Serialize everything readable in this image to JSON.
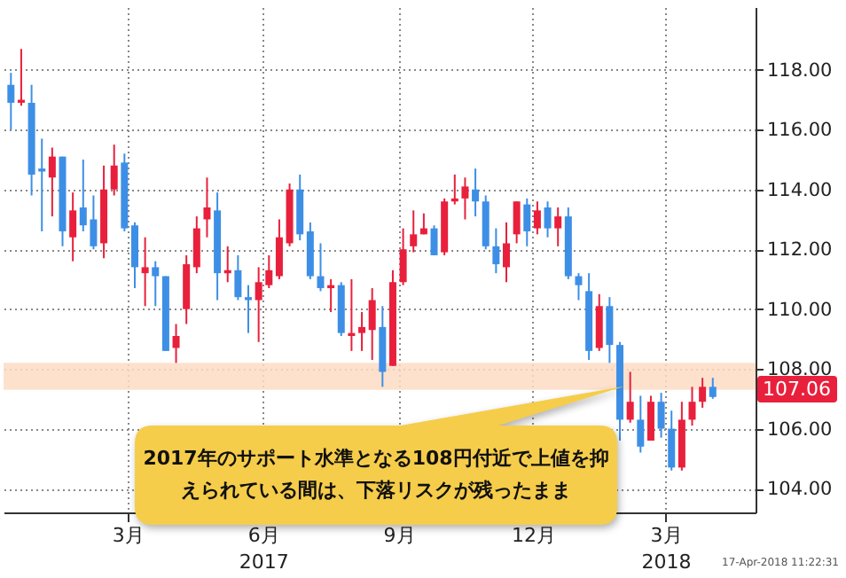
{
  "chart_data": {
    "type": "candlestick",
    "x": [
      "2016-12-26",
      "2017-01-02",
      "2017-01-09",
      "2017-01-16",
      "2017-01-23",
      "2017-01-30",
      "2017-02-06",
      "2017-02-13",
      "2017-02-20",
      "2017-02-27",
      "2017-03-06",
      "2017-03-13",
      "2017-03-20",
      "2017-03-27",
      "2017-04-03",
      "2017-04-10",
      "2017-04-17",
      "2017-04-24",
      "2017-05-01",
      "2017-05-08",
      "2017-05-15",
      "2017-05-22",
      "2017-05-29",
      "2017-06-05",
      "2017-06-12",
      "2017-06-19",
      "2017-06-26",
      "2017-07-03",
      "2017-07-10",
      "2017-07-17",
      "2017-07-24",
      "2017-07-31",
      "2017-08-07",
      "2017-08-14",
      "2017-08-21",
      "2017-08-28",
      "2017-09-04",
      "2017-09-11",
      "2017-09-18",
      "2017-09-25",
      "2017-10-02",
      "2017-10-09",
      "2017-10-16",
      "2017-10-23",
      "2017-10-30",
      "2017-11-06",
      "2017-11-13",
      "2017-11-20",
      "2017-11-27",
      "2017-12-04",
      "2017-12-11",
      "2017-12-18",
      "2017-12-25",
      "2018-01-01",
      "2018-01-08",
      "2018-01-15",
      "2018-01-22",
      "2018-01-29",
      "2018-02-05",
      "2018-02-12",
      "2018-02-19",
      "2018-02-26",
      "2018-03-05",
      "2018-03-12",
      "2018-03-19",
      "2018-03-26",
      "2018-04-02",
      "2018-04-09",
      "2018-04-16"
    ],
    "ohlc": [
      [
        117.5,
        117.9,
        116.0,
        116.9
      ],
      [
        116.9,
        118.7,
        116.8,
        117.0
      ],
      [
        116.9,
        117.5,
        113.8,
        114.5
      ],
      [
        114.7,
        115.7,
        112.6,
        114.6
      ],
      [
        114.4,
        115.4,
        113.1,
        115.1
      ],
      [
        115.1,
        115.1,
        112.1,
        112.6
      ],
      [
        112.4,
        113.9,
        111.6,
        113.3
      ],
      [
        113.4,
        115.0,
        112.6,
        112.8
      ],
      [
        113.0,
        113.8,
        112.0,
        112.1
      ],
      [
        112.2,
        114.8,
        111.7,
        114.0
      ],
      [
        114.0,
        115.5,
        113.8,
        114.8
      ],
      [
        114.9,
        115.2,
        112.6,
        112.7
      ],
      [
        112.8,
        112.9,
        110.7,
        111.4
      ],
      [
        111.2,
        112.4,
        110.1,
        111.4
      ],
      [
        111.4,
        111.6,
        110.1,
        111.1
      ],
      [
        111.1,
        111.1,
        108.6,
        108.6
      ],
      [
        108.7,
        109.5,
        108.2,
        109.1
      ],
      [
        110.0,
        111.8,
        109.5,
        111.5
      ],
      [
        111.4,
        113.1,
        111.2,
        112.7
      ],
      [
        113.0,
        114.4,
        112.4,
        113.4
      ],
      [
        113.3,
        113.9,
        110.3,
        111.2
      ],
      [
        111.2,
        112.1,
        110.9,
        111.3
      ],
      [
        111.3,
        111.8,
        110.3,
        110.4
      ],
      [
        110.4,
        110.8,
        109.2,
        110.3
      ],
      [
        110.3,
        111.4,
        108.9,
        110.9
      ],
      [
        110.8,
        111.8,
        110.7,
        111.3
      ],
      [
        111.1,
        113.0,
        111.0,
        112.4
      ],
      [
        112.2,
        114.2,
        112.1,
        114.0
      ],
      [
        114.0,
        114.5,
        112.3,
        112.5
      ],
      [
        112.6,
        112.9,
        111.0,
        111.1
      ],
      [
        111.1,
        112.2,
        110.6,
        110.7
      ],
      [
        110.7,
        111.0,
        109.9,
        110.8
      ],
      [
        110.8,
        110.9,
        109.1,
        109.2
      ],
      [
        109.1,
        111.0,
        108.6,
        109.2
      ],
      [
        109.2,
        109.9,
        108.6,
        109.4
      ],
      [
        109.3,
        110.7,
        108.3,
        110.3
      ],
      [
        109.4,
        110.1,
        107.4,
        107.9
      ],
      [
        108.1,
        111.3,
        108.1,
        110.9
      ],
      [
        110.9,
        112.7,
        110.8,
        112.0
      ],
      [
        112.1,
        113.3,
        111.9,
        112.5
      ],
      [
        112.5,
        113.2,
        112.5,
        112.7
      ],
      [
        112.7,
        112.8,
        111.8,
        111.8
      ],
      [
        111.9,
        113.7,
        111.8,
        113.6
      ],
      [
        113.6,
        114.5,
        113.5,
        113.7
      ],
      [
        113.7,
        114.4,
        113.0,
        114.1
      ],
      [
        114.0,
        114.7,
        113.1,
        113.6
      ],
      [
        113.6,
        113.8,
        112.0,
        112.1
      ],
      [
        112.1,
        112.7,
        111.2,
        111.5
      ],
      [
        111.4,
        112.9,
        110.9,
        112.2
      ],
      [
        112.5,
        113.6,
        112.2,
        113.6
      ],
      [
        113.5,
        113.7,
        112.1,
        112.6
      ],
      [
        112.7,
        113.6,
        112.5,
        113.3
      ],
      [
        113.4,
        113.6,
        112.4,
        112.7
      ],
      [
        112.7,
        113.4,
        112.1,
        113.1
      ],
      [
        113.1,
        113.4,
        111.0,
        111.1
      ],
      [
        111.1,
        111.2,
        110.3,
        110.8
      ],
      [
        110.6,
        111.2,
        108.3,
        108.6
      ],
      [
        108.7,
        110.5,
        108.6,
        110.1
      ],
      [
        110.1,
        110.4,
        108.2,
        108.8
      ],
      [
        108.8,
        108.9,
        105.6,
        106.3
      ],
      [
        106.3,
        107.9,
        106.2,
        106.9
      ],
      [
        106.3,
        107.1,
        105.2,
        105.4
      ],
      [
        105.6,
        107.1,
        105.6,
        106.9
      ],
      [
        106.9,
        107.2,
        105.7,
        106.0
      ],
      [
        106.0,
        106.6,
        104.6,
        104.7
      ],
      [
        104.7,
        106.9,
        104.6,
        106.3
      ],
      [
        106.3,
        107.4,
        106.1,
        106.9
      ],
      [
        106.9,
        107.7,
        106.7,
        107.4
      ],
      [
        107.4,
        107.7,
        107.0,
        107.06
      ]
    ],
    "colors": [
      "#3d8fe6",
      "#e8203c",
      "#3d8fe6",
      "#3d8fe6",
      "#e8203c",
      "#3d8fe6",
      "#e8203c",
      "#3d8fe6",
      "#3d8fe6",
      "#e8203c",
      "#e8203c",
      "#3d8fe6",
      "#3d8fe6",
      "#e8203c",
      "#3d8fe6",
      "#3d8fe6",
      "#e8203c",
      "#e8203c",
      "#e8203c",
      "#e8203c",
      "#3d8fe6",
      "#e8203c",
      "#3d8fe6",
      "#3d8fe6",
      "#e8203c",
      "#e8203c",
      "#e8203c",
      "#e8203c",
      "#3d8fe6",
      "#3d8fe6",
      "#3d8fe6",
      "#e8203c",
      "#3d8fe6",
      "#e8203c",
      "#e8203c",
      "#e8203c",
      "#3d8fe6",
      "#e8203c",
      "#e8203c",
      "#e8203c",
      "#e8203c",
      "#3d8fe6",
      "#e8203c",
      "#e8203c",
      "#e8203c",
      "#3d8fe6",
      "#3d8fe6",
      "#3d8fe6",
      "#e8203c",
      "#e8203c",
      "#3d8fe6",
      "#e8203c",
      "#3d8fe6",
      "#e8203c",
      "#3d8fe6",
      "#3d8fe6",
      "#3d8fe6",
      "#e8203c",
      "#3d8fe6",
      "#3d8fe6",
      "#e8203c",
      "#3d8fe6",
      "#e8203c",
      "#3d8fe6",
      "#3d8fe6",
      "#e8203c",
      "#e8203c",
      "#e8203c",
      "#3d8fe6"
    ],
    "xlim": [
      "2016-12-21",
      "2018-05-15"
    ],
    "xticks": [
      {
        "value": "2017-03-15",
        "label": "3月"
      },
      {
        "value": "2017-06-15",
        "label": "6月\n2017"
      },
      {
        "value": "2017-09-15",
        "label": "9月"
      },
      {
        "value": "2017-12-15",
        "label": "12月"
      },
      {
        "value": "2018-03-15",
        "label": "3月\n2018"
      }
    ],
    "ylim": [
      103.2,
      120.1
    ],
    "yticks": [
      {
        "value": 104,
        "label": "104.00"
      },
      {
        "value": 106,
        "label": "106.00"
      },
      {
        "value": 108,
        "label": "108.00"
      },
      {
        "value": 110,
        "label": "110.00"
      },
      {
        "value": 112,
        "label": "112.00"
      },
      {
        "value": 114,
        "label": "114.00"
      },
      {
        "value": 116,
        "label": "116.00"
      },
      {
        "value": 118,
        "label": "118.00"
      }
    ],
    "grid": true,
    "bands": [
      {
        "axis": "y",
        "from": 107.3,
        "to": 108.2,
        "color": "#fddcc4"
      }
    ],
    "annotations": [
      "2017年のサポート水準となる108円付近で上値を抑えられている間は、下落リスクが残ったまま",
      "17-Apr-2018 11:22:31",
      {
        "text": "107.06",
        "x": "2018-04-16",
        "y": 107.06
      }
    ]
  }
}
